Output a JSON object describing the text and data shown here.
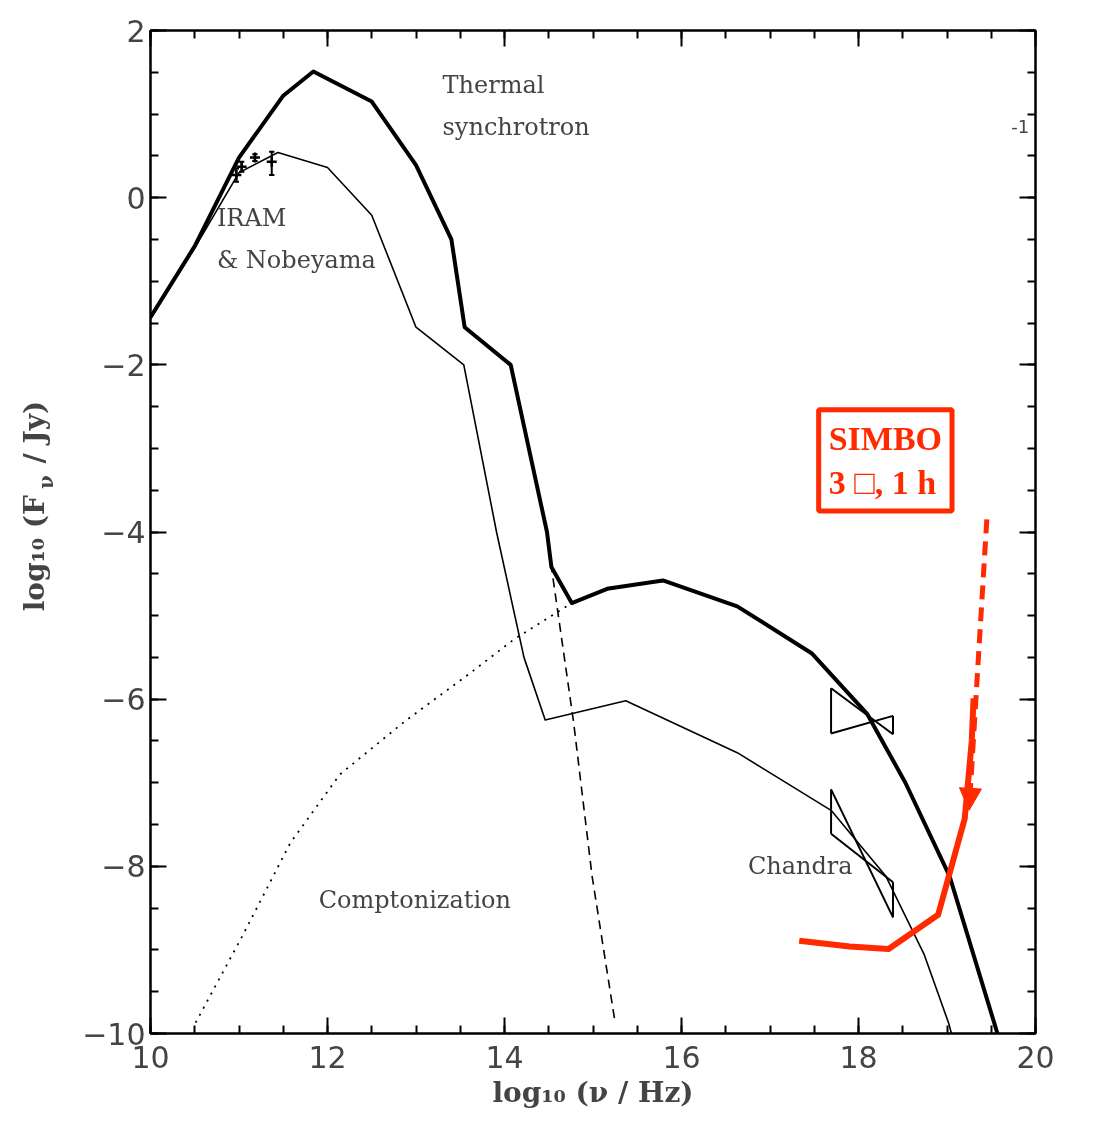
{
  "chart_data": {
    "type": "line",
    "xlabel": "log₁₀ (ν / Hz)",
    "ylabel": "log₁₀ (F$_{ν}$ / Jy)",
    "xlim": [
      10,
      20
    ],
    "ylim": [
      -10,
      2
    ],
    "xticks": [
      10,
      12,
      14,
      16,
      18,
      20
    ],
    "yticks": [
      {
        "value": -10,
        "label": "−10"
      },
      {
        "value": -8,
        "label": "−8"
      },
      {
        "value": -6,
        "label": "−6"
      },
      {
        "value": -4,
        "label": "−4"
      },
      {
        "value": -2,
        "label": "−2"
      },
      0,
      2
    ],
    "grid": false,
    "marker": "none",
    "line_style": "solid",
    "series": [
      {
        "color": "#000000",
        "x": [
          10,
          10.5,
          11,
          11.5,
          11.84,
          12.5,
          13,
          13.4,
          13.55,
          14.07,
          14.48,
          14.53,
          14.76,
          15.16,
          15.79,
          16.63,
          17.47,
          18.1,
          18.53,
          19.03,
          19.57
        ],
        "values": [
          -1.43,
          -0.58,
          0.48,
          1.22,
          1.51,
          1.15,
          0.39,
          -0.5,
          -1.55,
          -2,
          -4,
          -4.42,
          -4.85,
          -4.68,
          -4.58,
          -4.89,
          -5.45,
          -6.18,
          -7.0,
          -8.12,
          -10
        ]
      },
      {
        "color": "#000000",
        "x": [
          10,
          10.5,
          11,
          11.44,
          12,
          12.5,
          13,
          13.54,
          13.91,
          14.22,
          14.46,
          15.37,
          16.63,
          17.69,
          18.31,
          18.74,
          19.02,
          19.05
        ],
        "values": [
          -1.45,
          -0.6,
          0.3,
          0.54,
          0.36,
          -0.21,
          -1.55,
          -2,
          -4,
          -5.5,
          -6.25,
          -6.02,
          -6.64,
          -7.33,
          -8.12,
          -9.05,
          -9.88,
          -10
        ]
      },
      {
        "color": "#000000",
        "line_style": "dotted",
        "x": [
          10.51,
          11.03,
          11.58,
          12.14,
          12.88,
          13.61,
          14.1,
          14.76
        ],
        "values": [
          -9.87,
          -8.85,
          -7.72,
          -6.9,
          -6.26,
          -5.69,
          -5.29,
          -4.85
        ]
      },
      {
        "color": "#000000",
        "line_style": "dashed",
        "x": [
          14.5,
          14.53,
          14.78,
          14.99,
          15.25
        ],
        "values": [
          -4.2,
          -4.42,
          -6.27,
          -8.12,
          -9.87
        ]
      },
      {
        "color": "#ff2a00",
        "x": [
          17.33,
          17.9,
          18.34,
          18.9,
          19.2,
          19.28,
          19.3
        ],
        "values": [
          -8.89,
          -8.96,
          -8.99,
          -8.58,
          -7.43,
          -6.5,
          -5.99
        ]
      },
      {
        "color": "#000000",
        "x": [
          17.69,
          18.39
        ],
        "values": [
          -5.87,
          -6.42
        ]
      },
      {
        "color": "#000000",
        "x": [
          17.69,
          18.39
        ],
        "values": [
          -6.41,
          -6.2
        ]
      },
      {
        "color": "#000000",
        "x": [
          17.69,
          17.69
        ],
        "values": [
          -5.87,
          -6.41
        ]
      },
      {
        "color": "#000000",
        "x": [
          18.39,
          18.39
        ],
        "values": [
          -6.42,
          -6.2
        ]
      },
      {
        "color": "#000000",
        "x": [
          17.69,
          18.39
        ],
        "values": [
          -7.08,
          -8.61
        ]
      },
      {
        "color": "#000000",
        "x": [
          17.69,
          18.39
        ],
        "values": [
          -7.61,
          -8.19
        ]
      },
      {
        "color": "#000000",
        "x": [
          17.69,
          17.69
        ],
        "values": [
          -7.08,
          -7.61
        ]
      },
      {
        "color": "#000000",
        "x": [
          18.39,
          18.39
        ],
        "values": [
          -8.61,
          -8.19
        ]
      },
      {
        "type": "scatter",
        "marker": "cross",
        "color": "#000000",
        "x": [
          10.97,
          11.03,
          11.18,
          11.37
        ],
        "values": [
          0.27,
          0.37,
          0.48,
          0.43
        ],
        "errors": [
          0.08,
          0.06,
          0.04,
          [
            0.27,
            0.55
          ]
        ]
      }
    ],
    "annotations": [
      "Thermal\nsynchrotron",
      {
        "text": "IRAM\n& Nobeyama",
        "x": 11.0,
        "y": 0.27
      },
      "Comptonization",
      "Chandra",
      "SIMBO\n3 □, 1 h",
      "-1"
    ]
  }
}
